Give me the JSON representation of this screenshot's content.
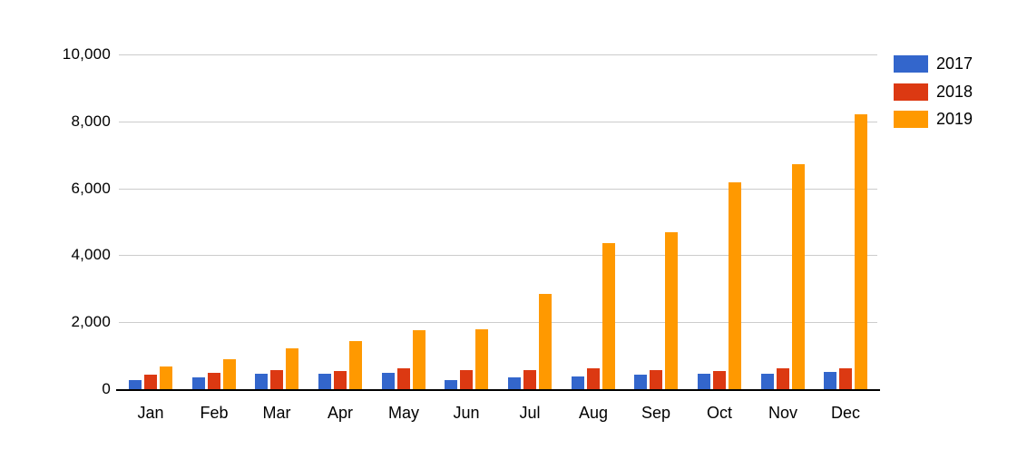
{
  "chart_data": {
    "type": "bar",
    "title": "",
    "xlabel": "",
    "ylabel": "",
    "categories": [
      "Jan",
      "Feb",
      "Mar",
      "Apr",
      "May",
      "Jun",
      "Jul",
      "Aug",
      "Sep",
      "Oct",
      "Nov",
      "Dec"
    ],
    "series": [
      {
        "name": "2017",
        "color": "#3366CC",
        "values": [
          270,
          360,
          450,
          450,
          500,
          260,
          340,
          390,
          430,
          470,
          460,
          510
        ]
      },
      {
        "name": "2018",
        "color": "#DC3912",
        "values": [
          440,
          500,
          560,
          540,
          620,
          580,
          570,
          610,
          580,
          530,
          610,
          630
        ]
      },
      {
        "name": "2019",
        "color": "#FF9900",
        "values": [
          680,
          890,
          1220,
          1430,
          1750,
          1790,
          2850,
          4360,
          4700,
          6180,
          6730,
          8220
        ]
      }
    ],
    "ylim": [
      0,
      10000
    ],
    "yticks": [
      0,
      2000,
      4000,
      6000,
      8000,
      10000
    ],
    "ytick_labels": [
      "0",
      "2,000",
      "4,000",
      "6,000",
      "8,000",
      "10,000"
    ],
    "grid": true,
    "legend_position": "right",
    "colors": {
      "axis": "#000000",
      "gridline": "#cccccc",
      "label": "#000000",
      "background": "#ffffff"
    }
  }
}
